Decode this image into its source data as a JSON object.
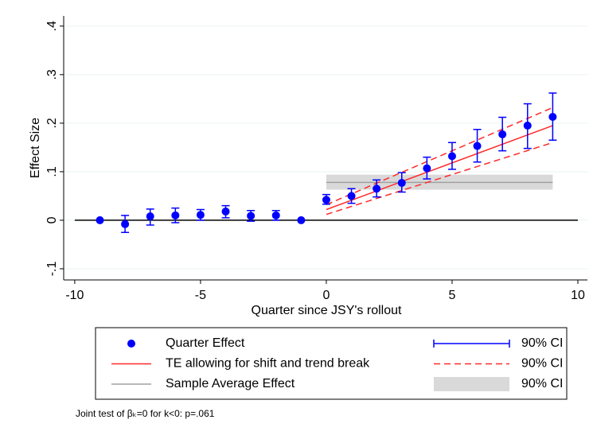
{
  "chart_data": {
    "type": "scatter",
    "y_label": "Effect Size",
    "x_label": "Quarter since JSY's rollout",
    "note": "Joint test of βₖ=0 for k<0: p=.061",
    "xlim": [
      -10.44,
      10.38
    ],
    "ylim": [
      -0.123,
      0.421
    ],
    "xticks": [
      -10,
      -5,
      0,
      5,
      10
    ],
    "yticks": [
      {
        "value": -0.1,
        "label": "-.1"
      },
      0,
      {
        "value": 0.1,
        "label": ".1"
      },
      {
        "value": 0.2,
        "label": ".2"
      },
      {
        "value": 0.3,
        "label": ".3"
      },
      {
        "value": 0.4,
        "label": ".4"
      }
    ],
    "grid": true,
    "reference_line": 0,
    "series": [
      {
        "name": "Quarter Effect",
        "style": "points",
        "color": "#0000ff",
        "x": [
          -9,
          -8,
          -7,
          -6,
          -5,
          -4,
          -3,
          -2,
          -1,
          0,
          1,
          2,
          3,
          4,
          5,
          6,
          7,
          8,
          9
        ],
        "values": [
          0,
          -0.008,
          0.008,
          0.01,
          0.011,
          0.018,
          0.009,
          0.01,
          0,
          0.042,
          0.05,
          0.065,
          0.077,
          0.107,
          0.132,
          0.153,
          0.177,
          0.195,
          0.213
        ]
      },
      {
        "name": "90% CI",
        "style": "errorbar",
        "color": "#0000ff",
        "x": [
          -9,
          -8,
          -7,
          -6,
          -5,
          -4,
          -3,
          -2,
          -1,
          0,
          1,
          2,
          3,
          4,
          5,
          6,
          7,
          8,
          9
        ],
        "low": [
          null,
          -0.025,
          -0.01,
          -0.005,
          0,
          0.005,
          -0.002,
          0,
          null,
          0.033,
          0.035,
          0.048,
          0.058,
          0.085,
          0.105,
          0.12,
          0.143,
          0.148,
          0.165
        ],
        "high": [
          null,
          0.01,
          0.023,
          0.025,
          0.022,
          0.03,
          0.02,
          0.02,
          null,
          0.053,
          0.065,
          0.083,
          0.098,
          0.13,
          0.16,
          0.187,
          0.212,
          0.24,
          0.262
        ]
      },
      {
        "name": "TE allowing for shift and trend break",
        "style": "line",
        "color": "#ff2a2a",
        "x": [
          0,
          9
        ],
        "values": [
          0.022,
          0.195
        ]
      },
      {
        "name": "90% CI",
        "style": "dashed",
        "color": "#ff2a2a",
        "x": [
          0,
          9
        ],
        "low": [
          0.012,
          0.16
        ],
        "high": [
          0.032,
          0.232
        ]
      },
      {
        "name": "Sample Average Effect",
        "style": "line",
        "color": "#a0a0a0",
        "x": [
          0,
          9
        ],
        "values": [
          0.078,
          0.078
        ]
      },
      {
        "name": "90% CI",
        "style": "band",
        "color": "#d9d9d9",
        "x": [
          0,
          9
        ],
        "low": [
          0.063,
          0.063
        ],
        "high": [
          0.094,
          0.094
        ]
      }
    ]
  }
}
